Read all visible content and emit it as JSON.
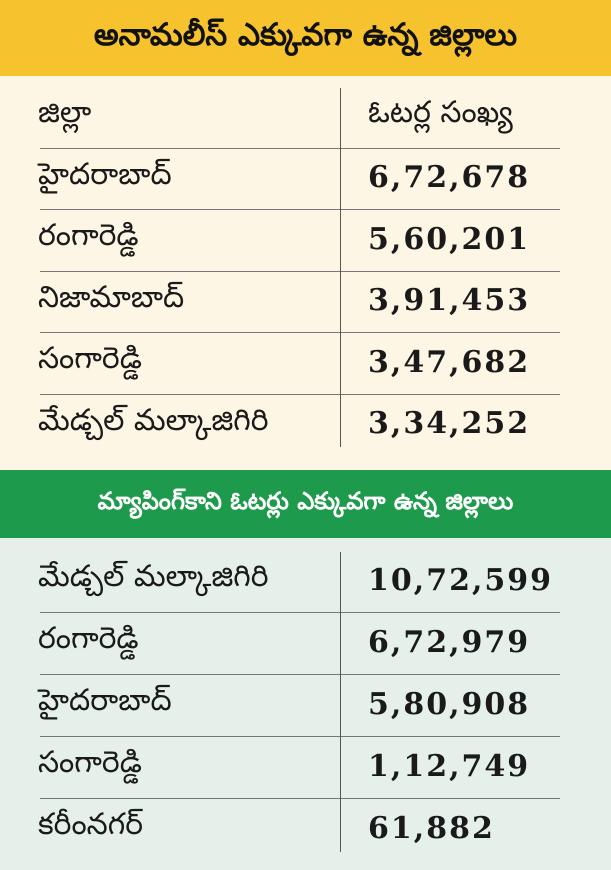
{
  "sections": [
    {
      "title": "అనామలీస్ ఎక్కువగా ఉన్న జిల్లాలు",
      "header": [
        "జిల్లా",
        "ఓటర్ల సంఖ్య"
      ],
      "rows": [
        [
          "హైదరాబాద్",
          "6,72,678"
        ],
        [
          "రంగారెడ్డి",
          "5,60,201"
        ],
        [
          "నిజామాబాద్",
          "3,91,453"
        ],
        [
          "సంగారెడ్డి",
          "3,47,682"
        ],
        [
          "మేడ్చల్ మల్కాజిగిరి",
          "3,34,252"
        ]
      ]
    },
    {
      "title": "మ్యాపింగ్‌కాని ఓటర్లు ఎక్కువగా ఉన్న జిల్లాలు",
      "rows": [
        [
          "మేడ్చల్ మల్కాజిగిరి",
          "10,72,599"
        ],
        [
          "రంగారెడ్డి",
          "6,72,979"
        ],
        [
          "హైదరాబాద్",
          "5,80,908"
        ],
        [
          "సంగారెడ్డి",
          "1,12,749"
        ],
        [
          "కరీంనగర్",
          "61,882"
        ]
      ]
    }
  ]
}
